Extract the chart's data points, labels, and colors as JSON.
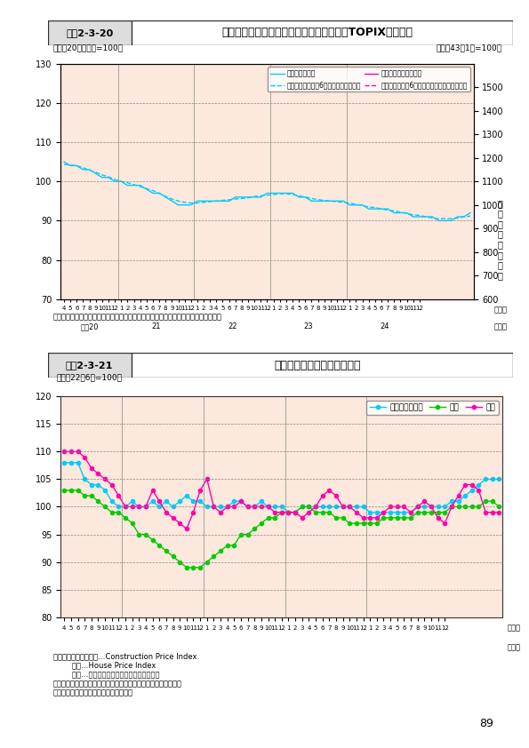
{
  "title_box": "図表2-3-21",
  "title_text": "各国の不動産価格指数の推移",
  "subtitle": "（平成22年6月=100）",
  "bg_color": "#fce8dc",
  "plot_bg_color": "#fce8dc",
  "ylim": [
    80,
    120
  ],
  "yticks": [
    80,
    85,
    90,
    95,
    100,
    105,
    110,
    115,
    120
  ],
  "xlabel_month": "（月）",
  "xlabel_year": "（年）",
  "year_labels": [
    "平成20",
    "21",
    "22",
    "23",
    "24"
  ],
  "legend_labels": [
    "アメリカ合衆国",
    "英国",
    "日本"
  ],
  "legend_colors": [
    "#00ccff",
    "#00cc00",
    "#ff00aa"
  ],
  "source_text": "資料：アメリカ合衆国…Construction Price Index\n        英国…House Price Index\n        日本…不動産価格指数（住宅総合、全国）\n注１：いずれも、政府機関がヘドニック法により作成した指数。\n注２：アメリカ合衆国のみ季節調整済。",
  "usa": [
    108,
    108,
    108,
    105,
    104,
    104,
    103,
    101,
    100,
    100,
    101,
    100,
    100,
    101,
    100,
    101,
    100,
    101,
    102,
    101,
    101,
    100,
    100,
    100,
    100,
    101,
    101,
    100,
    100,
    101,
    100,
    100,
    100,
    99,
    99,
    100,
    100,
    100,
    100,
    100,
    100,
    100,
    100,
    100,
    100,
    99,
    99,
    99,
    99,
    99,
    99,
    99,
    100,
    100,
    100,
    100,
    100,
    101,
    101,
    102,
    103,
    104,
    105,
    105,
    105
  ],
  "uk": [
    103,
    103,
    103,
    102,
    102,
    101,
    100,
    99,
    99,
    98,
    97,
    95,
    95,
    94,
    93,
    92,
    91,
    90,
    89,
    89,
    89,
    90,
    91,
    92,
    93,
    93,
    95,
    95,
    96,
    97,
    98,
    98,
    99,
    99,
    99,
    100,
    100,
    99,
    99,
    99,
    98,
    98,
    97,
    97,
    97,
    97,
    97,
    98,
    98,
    98,
    98,
    98,
    99,
    99,
    99,
    99,
    99,
    100,
    100,
    100,
    100,
    100,
    101,
    101,
    100
  ],
  "japan": [
    110,
    110,
    110,
    109,
    107,
    106,
    105,
    104,
    102,
    100,
    100,
    100,
    100,
    103,
    101,
    99,
    98,
    97,
    96,
    99,
    103,
    105,
    100,
    99,
    100,
    100,
    101,
    100,
    100,
    100,
    100,
    99,
    99,
    99,
    99,
    98,
    99,
    100,
    102,
    103,
    102,
    100,
    100,
    99,
    98,
    98,
    98,
    99,
    100,
    100,
    100,
    99,
    100,
    101,
    100,
    98,
    97,
    100,
    102,
    104,
    104,
    103,
    99,
    99,
    99
  ]
}
